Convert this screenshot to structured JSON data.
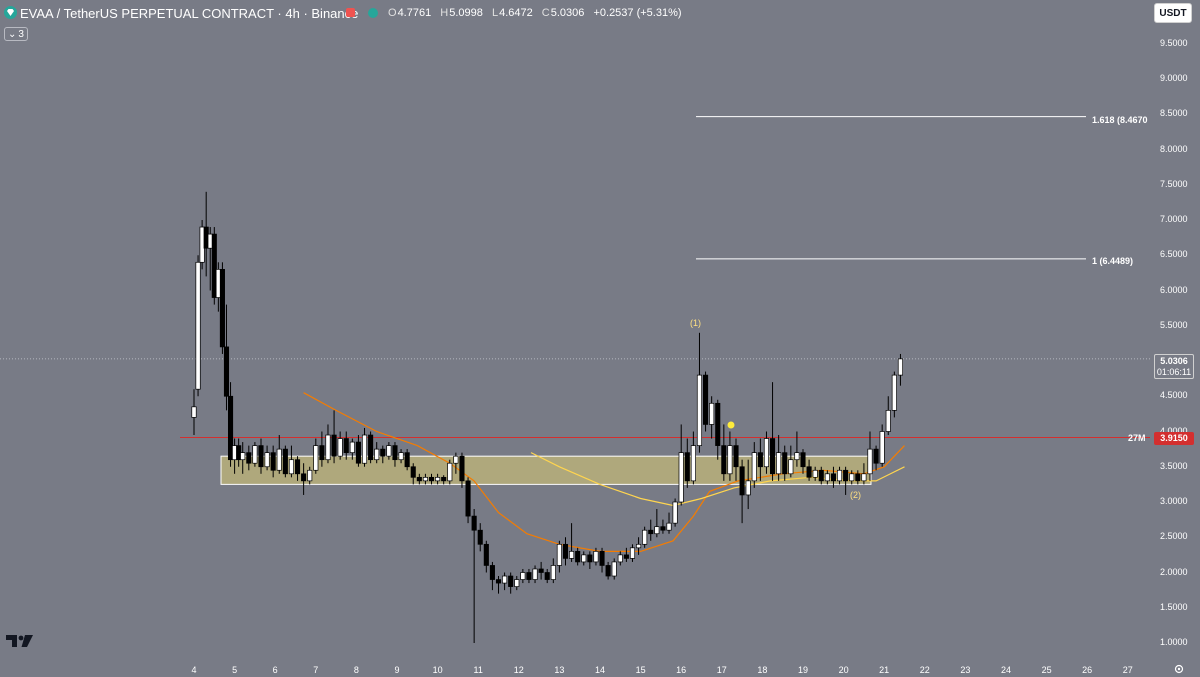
{
  "header": {
    "title": "EVAA / TetherUS PERPETUAL CONTRACT · 4h · Binance",
    "ohlc": {
      "open_label": "O",
      "open": "4.7761",
      "high_label": "H",
      "high": "5.0998",
      "low_label": "L",
      "low": "4.6472",
      "close_label": "C",
      "close": "5.0306",
      "change": "+0.2537 (+5.31%)"
    },
    "collapse_count": "3",
    "currency": "USDT"
  },
  "colors": {
    "background": "#787b86",
    "up_candle": "#ffffff",
    "down_candle": "#000000",
    "support_line": "#d32f2f",
    "zone_fill": "#b8b07a",
    "ema_fast": "#f57c00",
    "ema_slow": "#ffd54f"
  },
  "y_axis": [
    "9.5000",
    "9.0000",
    "8.5000",
    "8.0000",
    "7.5000",
    "7.0000",
    "6.5000",
    "6.0000",
    "5.5000",
    "5.0000",
    "4.5000",
    "4.0000",
    "3.5000",
    "3.0000",
    "2.5000",
    "2.0000",
    "1.5000",
    "1.0000"
  ],
  "x_axis": [
    "4",
    "5",
    "6",
    "7",
    "8",
    "9",
    "10",
    "11",
    "12",
    "13",
    "14",
    "15",
    "16",
    "17",
    "18",
    "19",
    "20",
    "21",
    "22",
    "23",
    "24",
    "25",
    "26",
    "27"
  ],
  "annotations": {
    "fib_1618": "1.618 (8.4670",
    "fib_1": "1 (6.4489)",
    "wave_1": "(1)",
    "wave_2": "(2)",
    "level_tag": "27M"
  },
  "price_tags": {
    "current_price": "5.0306",
    "countdown": "01:06:11",
    "support_price": "3.9150"
  },
  "chart_data": {
    "type": "candlestick",
    "timeframe": "4h",
    "current_price": 5.0306,
    "support_level": 3.915,
    "fib_levels": [
      {
        "label": "1",
        "price": 6.4489
      },
      {
        "label": "1.618",
        "price": 8.467
      }
    ],
    "zone": {
      "low": 3.25,
      "high": 3.65
    },
    "approx_path": [
      {
        "x": "4",
        "price": 4.2
      },
      {
        "x": "4.5",
        "price": 6.9
      },
      {
        "x": "5",
        "price": 3.6
      },
      {
        "x": "7",
        "price": 3.5
      },
      {
        "x": "8",
        "price": 3.8
      },
      {
        "x": "10",
        "price": 3.35
      },
      {
        "x": "10.9",
        "price": 3.6
      },
      {
        "x": "11.5",
        "price": 1.9
      },
      {
        "x": "13",
        "price": 2.0
      },
      {
        "x": "15",
        "price": 2.3
      },
      {
        "x": "16.5",
        "price": 4.8
      },
      {
        "x": "17.5",
        "price": 3.3
      },
      {
        "x": "19",
        "price": 3.4
      },
      {
        "x": "20.5",
        "price": 3.3
      },
      {
        "x": "21.5",
        "price": 5.03
      }
    ]
  }
}
